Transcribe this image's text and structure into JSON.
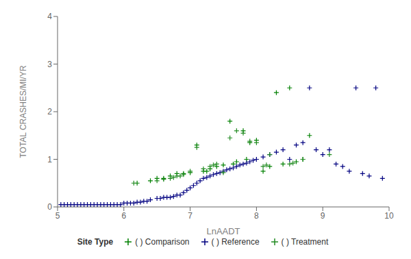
{
  "chart_data": {
    "type": "scatter",
    "xlabel": "LnAADT",
    "ylabel": "TOTAL CRASHES/MI/YR",
    "xlim": [
      5,
      10
    ],
    "ylim": [
      0,
      4
    ],
    "xticks": [
      5,
      6,
      7,
      8,
      9,
      10
    ],
    "yticks": [
      0,
      1,
      2,
      3,
      4
    ],
    "grid": false,
    "legend": "bottom",
    "legend_title": "Site Type",
    "marker": "plus",
    "series": [
      {
        "name": "( ) Comparison",
        "color": "#008000",
        "x": [
          6.2,
          6.4,
          6.5,
          6.6,
          6.7,
          6.8,
          6.9,
          7.0,
          7.1,
          7.2,
          7.25,
          7.3,
          7.4,
          7.5,
          7.6,
          7.65,
          7.7,
          7.8,
          7.85,
          7.9,
          8.0,
          8.1,
          8.2,
          8.3,
          8.4,
          8.5,
          8.6,
          8.7,
          8.8
        ],
        "values": [
          0.5,
          0.55,
          0.6,
          0.6,
          0.65,
          0.7,
          0.7,
          0.72,
          1.3,
          0.75,
          0.75,
          0.8,
          0.85,
          0.88,
          1.8,
          0.9,
          0.95,
          1.6,
          1.0,
          1.35,
          1.4,
          0.75,
          0.85,
          2.4,
          0.9,
          2.5,
          0.95,
          1.0,
          1.5
        ]
      },
      {
        "name": "( ) Reference",
        "color": "#000080",
        "x": [
          5.05,
          5.1,
          5.15,
          5.2,
          5.25,
          5.3,
          5.35,
          5.4,
          5.45,
          5.5,
          5.55,
          5.6,
          5.65,
          5.7,
          5.75,
          5.8,
          5.85,
          5.9,
          5.95,
          6.0,
          6.05,
          6.1,
          6.15,
          6.2,
          6.25,
          6.3,
          6.35,
          6.4,
          6.5,
          6.55,
          6.6,
          6.65,
          6.7,
          6.75,
          6.8,
          6.85,
          6.9,
          6.95,
          7.0,
          7.05,
          7.1,
          7.15,
          7.2,
          7.25,
          7.3,
          7.35,
          7.4,
          7.45,
          7.5,
          7.55,
          7.6,
          7.65,
          7.7,
          7.75,
          7.8,
          7.85,
          7.9,
          7.95,
          8.0,
          8.1,
          8.2,
          8.3,
          8.4,
          8.5,
          8.6,
          8.7,
          8.8,
          8.9,
          9.0,
          9.1,
          9.2,
          9.3,
          9.4,
          9.5,
          9.6,
          9.7,
          9.8,
          9.9
        ],
        "values": [
          0.05,
          0.05,
          0.05,
          0.05,
          0.05,
          0.05,
          0.05,
          0.05,
          0.05,
          0.05,
          0.05,
          0.05,
          0.05,
          0.05,
          0.05,
          0.05,
          0.05,
          0.05,
          0.05,
          0.08,
          0.08,
          0.08,
          0.08,
          0.1,
          0.1,
          0.12,
          0.12,
          0.15,
          0.18,
          0.18,
          0.2,
          0.2,
          0.2,
          0.22,
          0.25,
          0.25,
          0.3,
          0.35,
          0.4,
          0.45,
          0.5,
          0.55,
          0.6,
          0.62,
          0.65,
          0.68,
          0.7,
          0.72,
          0.75,
          0.78,
          0.8,
          0.82,
          0.85,
          0.88,
          0.9,
          0.92,
          0.95,
          0.98,
          1.0,
          1.05,
          1.1,
          1.15,
          1.2,
          1.0,
          1.3,
          1.35,
          2.5,
          1.2,
          1.1,
          1.2,
          0.9,
          0.85,
          0.75,
          2.5,
          0.7,
          0.65,
          2.5,
          0.6
        ]
      },
      {
        "name": "( ) Treatment",
        "color": "#228B22",
        "x": [
          6.15,
          6.5,
          6.6,
          6.7,
          6.75,
          6.8,
          6.85,
          6.9,
          7.0,
          7.1,
          7.2,
          7.3,
          7.35,
          7.4,
          7.5,
          7.6,
          7.7,
          7.8,
          7.9,
          8.0,
          8.1,
          8.15,
          8.2,
          8.5,
          8.55,
          8.7,
          9.1
        ],
        "values": [
          0.5,
          0.55,
          0.58,
          0.6,
          0.62,
          0.65,
          0.65,
          0.68,
          0.75,
          1.25,
          0.8,
          0.85,
          0.88,
          0.9,
          0.72,
          1.45,
          1.6,
          1.55,
          1.38,
          1.35,
          0.85,
          0.88,
          1.1,
          0.9,
          0.92,
          1.0,
          1.1
        ]
      }
    ]
  }
}
